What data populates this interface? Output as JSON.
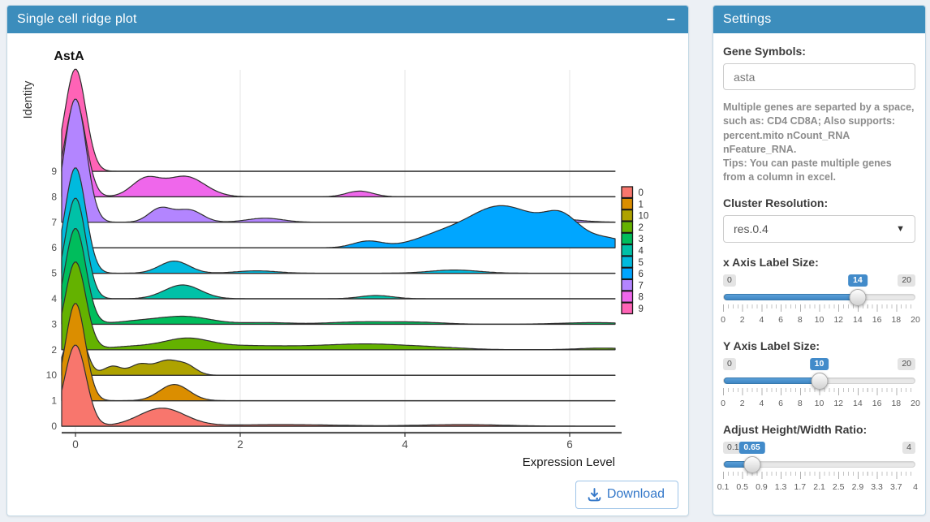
{
  "main_panel": {
    "title": "Single cell ridge plot",
    "minus_icon": "−",
    "download_label": "Download"
  },
  "chart_data": {
    "type": "ridgeline",
    "title": "AstA",
    "xlabel": "Expression Level",
    "ylabel": "Identity",
    "x_ticks": [
      0,
      2,
      4,
      6
    ],
    "xlim": [
      -0.17,
      6.55
    ],
    "grid": "vertical-major",
    "legend_position": "right",
    "legend": [
      {
        "label": "0",
        "color": "#F8766D"
      },
      {
        "label": "1",
        "color": "#DB8E00"
      },
      {
        "label": "10",
        "color": "#AEA200"
      },
      {
        "label": "2",
        "color": "#64B200"
      },
      {
        "label": "3",
        "color": "#00BD5C"
      },
      {
        "label": "4",
        "color": "#00C1A7"
      },
      {
        "label": "5",
        "color": "#00BADE"
      },
      {
        "label": "6",
        "color": "#00A6FF"
      },
      {
        "label": "7",
        "color": "#B385FF"
      },
      {
        "label": "8",
        "color": "#EF67EB"
      },
      {
        "label": "9",
        "color": "#FF63B6"
      }
    ],
    "rows": [
      {
        "label": "9",
        "color": "#FF63B6",
        "peaks": [
          [
            0,
            0.125,
            126
          ]
        ]
      },
      {
        "label": "8",
        "color": "#EF67EB",
        "peaks": [
          [
            0,
            0.125,
            118
          ],
          [
            0.85,
            0.17,
            21
          ],
          [
            1.33,
            0.24,
            25
          ],
          [
            3.45,
            0.16,
            7
          ]
        ]
      },
      {
        "label": "7",
        "color": "#B385FF",
        "peaks": [
          [
            0,
            0.13,
            152
          ],
          [
            1.03,
            0.14,
            17
          ],
          [
            1.38,
            0.16,
            15
          ],
          [
            2.3,
            0.22,
            5
          ],
          [
            5.65,
            0.35,
            6
          ]
        ]
      },
      {
        "label": "6",
        "color": "#00A6FF",
        "peaks": [
          [
            3.55,
            0.18,
            8
          ],
          [
            4.5,
            0.35,
            18
          ],
          [
            5.1,
            0.32,
            40
          ],
          [
            5.55,
            0.3,
            22
          ],
          [
            5.9,
            0.2,
            26
          ],
          [
            6.35,
            0.35,
            13
          ]
        ]
      },
      {
        "label": "5",
        "color": "#00BADE",
        "peaks": [
          [
            0,
            0.125,
            130
          ],
          [
            1.2,
            0.18,
            15
          ],
          [
            2.2,
            0.25,
            3
          ],
          [
            4.6,
            0.3,
            4
          ]
        ]
      },
      {
        "label": "4",
        "color": "#00C1A7",
        "peaks": [
          [
            0,
            0.125,
            124
          ],
          [
            1.3,
            0.22,
            17
          ],
          [
            3.65,
            0.2,
            4
          ]
        ]
      },
      {
        "label": "3",
        "color": "#00BD5C",
        "peaks": [
          [
            0,
            0.125,
            118
          ],
          [
            0.8,
            0.3,
            4
          ],
          [
            1.35,
            0.3,
            9
          ],
          [
            2.3,
            0.3,
            2
          ],
          [
            3.5,
            0.4,
            3
          ],
          [
            4.2,
            0.3,
            2
          ],
          [
            6.3,
            0.4,
            2
          ]
        ]
      },
      {
        "label": "2",
        "color": "#64B200",
        "peaks": [
          [
            0,
            0.125,
            108
          ],
          [
            0.7,
            0.3,
            4
          ],
          [
            1.35,
            0.28,
            13
          ],
          [
            2.0,
            0.4,
            4
          ],
          [
            2.9,
            0.5,
            4
          ],
          [
            3.6,
            0.4,
            5
          ],
          [
            4.3,
            0.4,
            3
          ],
          [
            6.4,
            0.3,
            2
          ]
        ]
      },
      {
        "label": "10",
        "color": "#AEA200",
        "peaks": [
          [
            0,
            0.11,
            70
          ],
          [
            0.45,
            0.11,
            11
          ],
          [
            0.78,
            0.12,
            13
          ],
          [
            1.1,
            0.14,
            17
          ],
          [
            1.35,
            0.12,
            11
          ]
        ]
      },
      {
        "label": "1",
        "color": "#DB8E00",
        "peaks": [
          [
            0,
            0.12,
            120
          ],
          [
            1.2,
            0.18,
            20
          ]
        ]
      },
      {
        "label": "0",
        "color": "#F8766D",
        "peaks": [
          [
            0,
            0.13,
            100
          ],
          [
            1.05,
            0.28,
            22
          ],
          [
            2.5,
            0.7,
            2
          ],
          [
            4.7,
            0.5,
            2
          ]
        ]
      }
    ]
  },
  "settings_panel": {
    "title": "Settings",
    "gene_symbols": {
      "label": "Gene Symbols:",
      "value": "asta"
    },
    "help_text": "Multiple genes are separted by a space, such as: CD4 CD8A; Also supports: percent.mito nCount_RNA nFeature_RNA.\nTips: You can paste multiple genes from a column in excel.",
    "cluster_resolution": {
      "label": "Cluster Resolution:",
      "value": "res.0.4",
      "caret_icon": "▼"
    },
    "sliders": [
      {
        "label": "x Axis Label Size:",
        "min": "0",
        "max": "20",
        "value": "14",
        "percent": 70,
        "tick_labels": [
          "0",
          "2",
          "4",
          "6",
          "8",
          "10",
          "12",
          "14",
          "16",
          "18",
          "20"
        ]
      },
      {
        "label": "Y Axis Label Size:",
        "min": "0",
        "max": "20",
        "value": "10",
        "percent": 50,
        "tick_labels": [
          "0",
          "2",
          "4",
          "6",
          "8",
          "10",
          "12",
          "14",
          "16",
          "18",
          "20"
        ]
      },
      {
        "label": "Adjust Height/Width Ratio:",
        "min": "0.1",
        "max": "4",
        "value": "0.65",
        "percent": 15,
        "tick_labels": [
          "0.1",
          "0.5",
          "0.9",
          "1.3",
          "1.7",
          "2.1",
          "2.5",
          "2.9",
          "3.3",
          "3.7",
          "4"
        ]
      }
    ]
  }
}
